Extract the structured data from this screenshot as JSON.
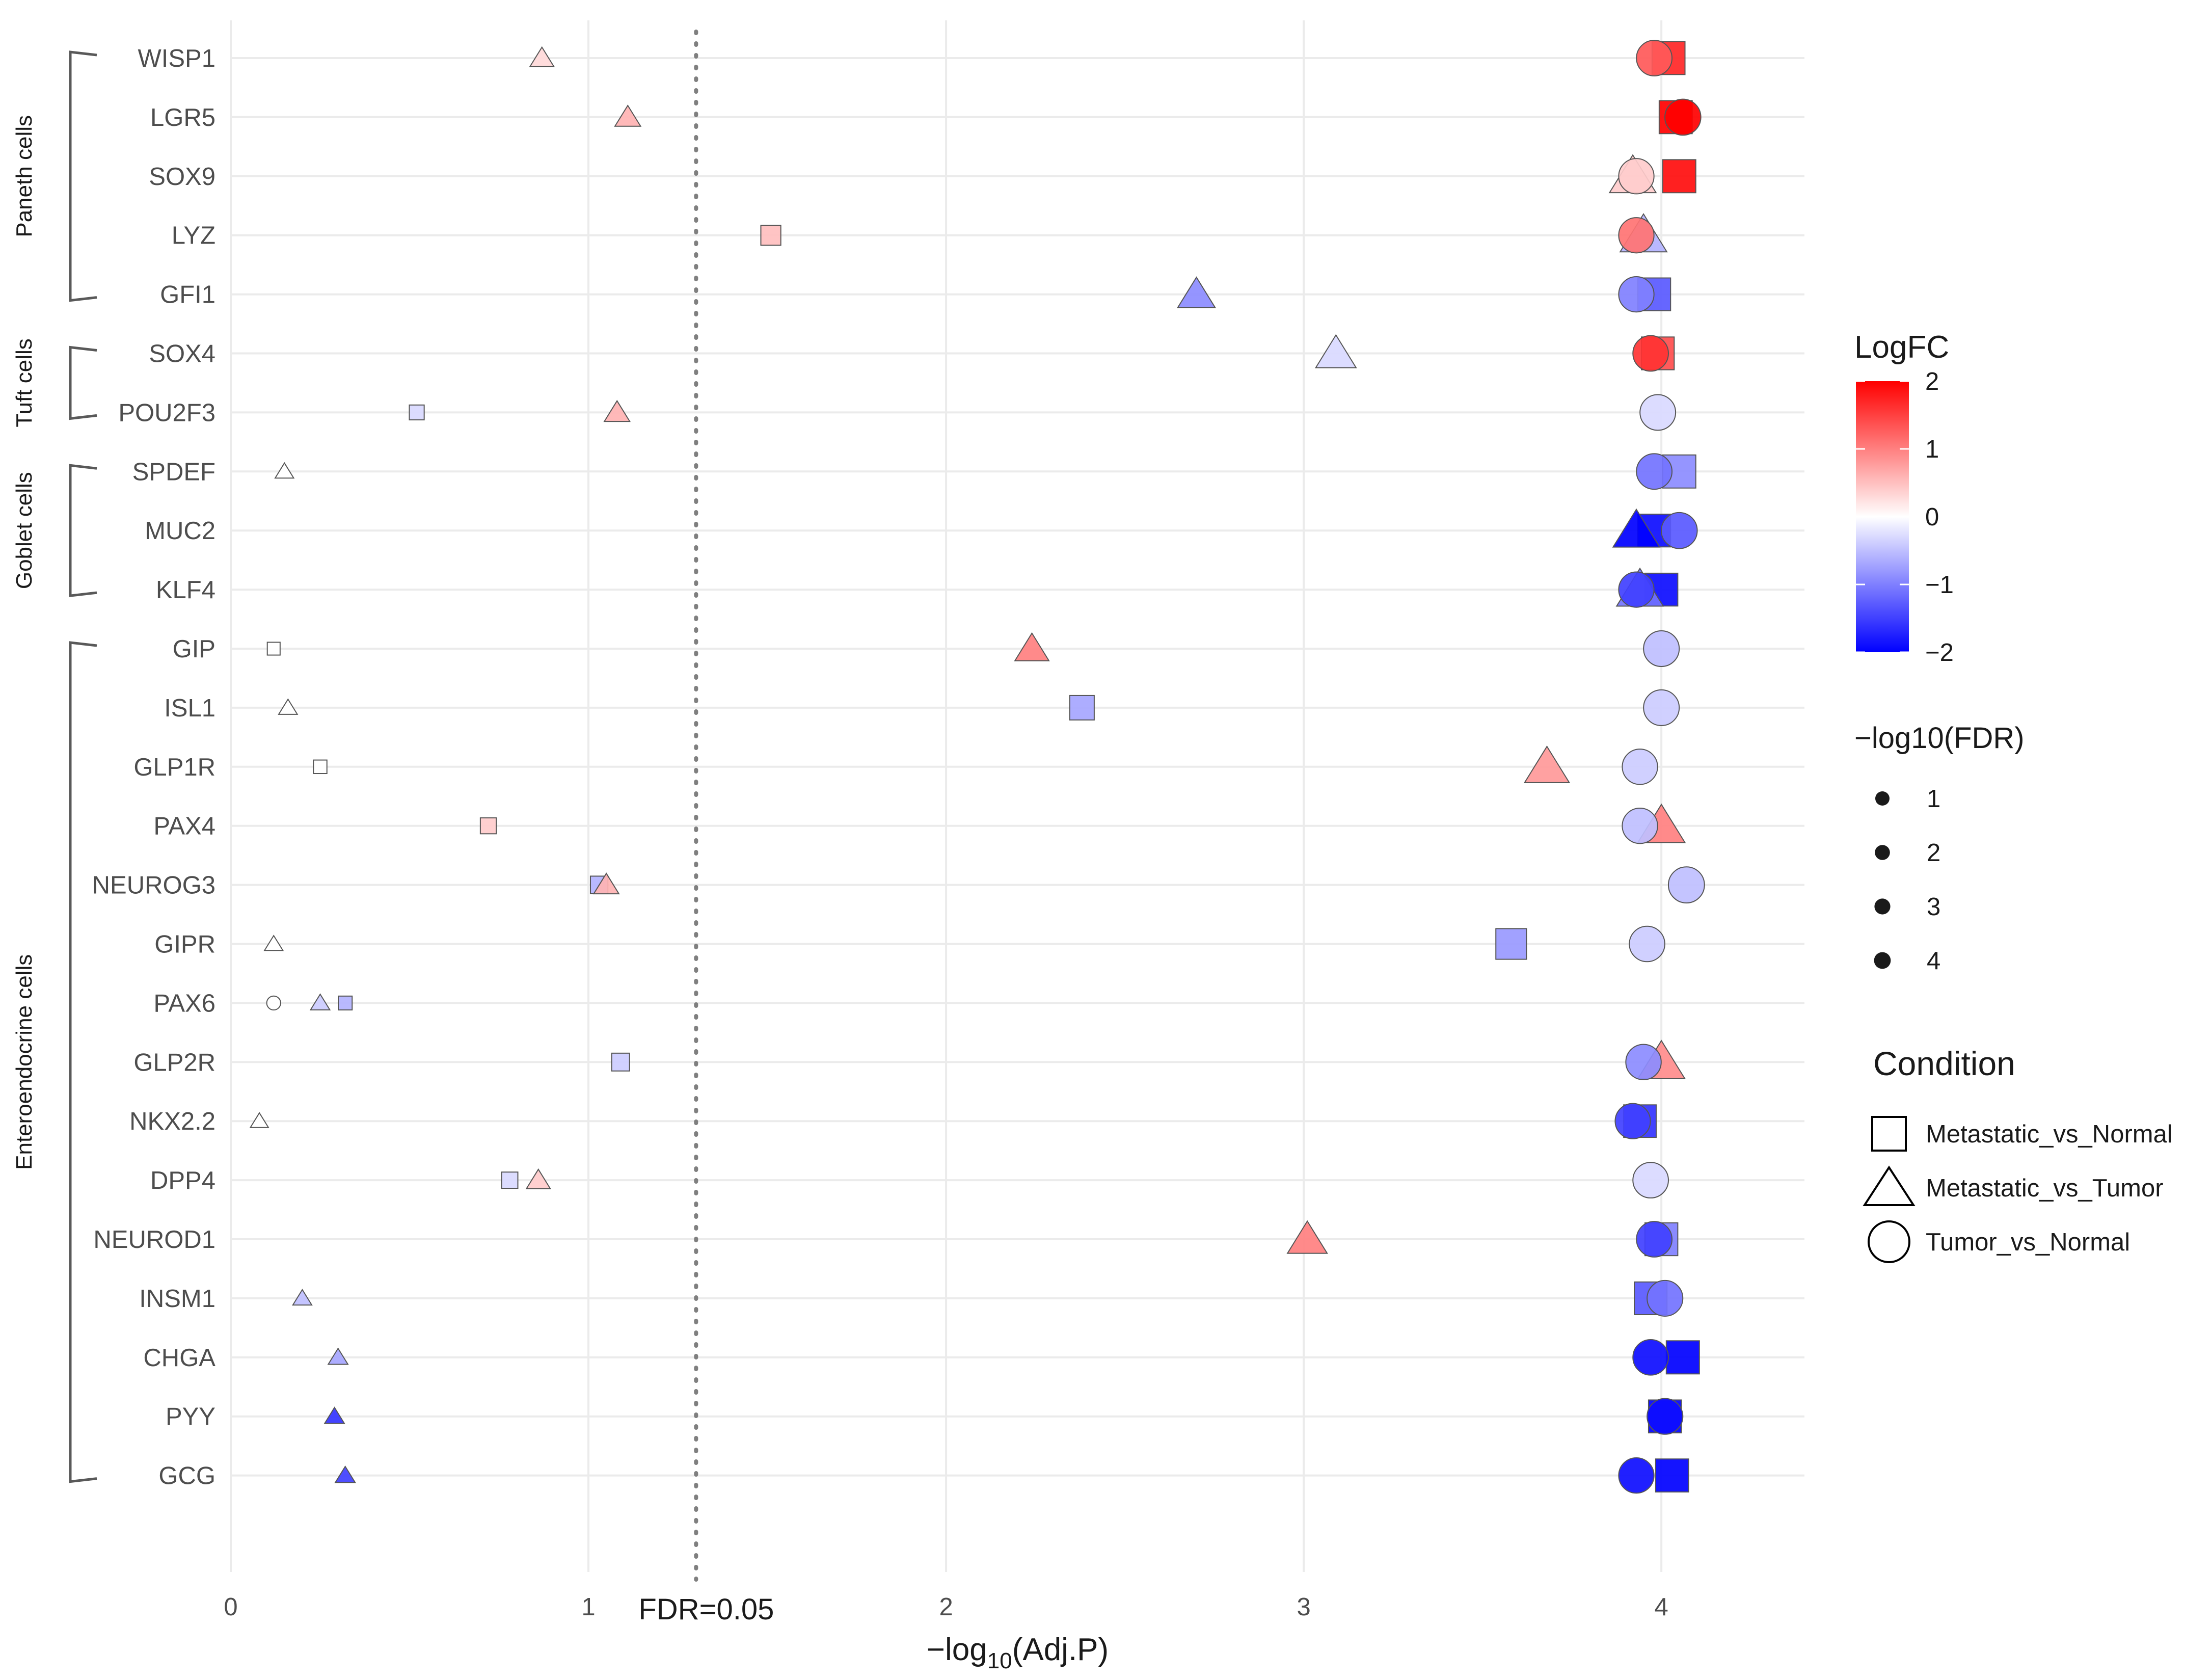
{
  "chart_data": {
    "type": "scatter",
    "title": "",
    "xlabel_parts": {
      "prefix": "−log",
      "sub": "10",
      "suffix": "(Adj.P)"
    },
    "ylabel": "",
    "xlim": [
      0,
      4.4
    ],
    "x_ticks": [
      0,
      1,
      2,
      3,
      4
    ],
    "x_tick_labels": [
      "0",
      "1",
      "2",
      "3",
      "4"
    ],
    "threshold": {
      "x": 1.301,
      "label": "FDR=0.05"
    },
    "genes": [
      "WISP1",
      "LGR5",
      "SOX9",
      "LYZ",
      "GFI1",
      "SOX4",
      "POU2F3",
      "SPDEF",
      "MUC2",
      "KLF4",
      "GIP",
      "ISL1",
      "GLP1R",
      "PAX4",
      "NEUROG3",
      "GIPR",
      "PAX6",
      "GLP2R",
      "NKX2.2",
      "DPP4",
      "NEUROD1",
      "INSM1",
      "CHGA",
      "PYY",
      "GCG"
    ],
    "groups": [
      {
        "label": "Paneth cells",
        "from": "WISP1",
        "to": "GFI1"
      },
      {
        "label": "Tuft cells",
        "from": "SOX4",
        "to": "POU2F3"
      },
      {
        "label": "Goblet cells",
        "from": "SPDEF",
        "to": "KLF4"
      },
      {
        "label": "Enteroendocrine cells",
        "from": "GIP",
        "to": "GCG"
      }
    ],
    "series": [
      {
        "name": "Metastatic_vs_Normal",
        "shape": "square",
        "points": [
          {
            "gene": "WISP1",
            "x": 4.02,
            "logfc": 1.7
          },
          {
            "gene": "LGR5",
            "x": 4.04,
            "logfc": 2.0
          },
          {
            "gene": "SOX9",
            "x": 4.05,
            "logfc": 1.9
          },
          {
            "gene": "LYZ",
            "x": 1.51,
            "logfc": 0.5
          },
          {
            "gene": "GFI1",
            "x": 3.98,
            "logfc": -1.3
          },
          {
            "gene": "SOX4",
            "x": 3.99,
            "logfc": 1.4
          },
          {
            "gene": "POU2F3",
            "x": 0.52,
            "logfc": -0.3
          },
          {
            "gene": "SPDEF",
            "x": 4.05,
            "logfc": -0.9
          },
          {
            "gene": "MUC2",
            "x": 3.98,
            "logfc": -1.9
          },
          {
            "gene": "KLF4",
            "x": 4.0,
            "logfc": -1.9
          },
          {
            "gene": "GIP",
            "x": 0.12,
            "logfc": 0.0
          },
          {
            "gene": "ISL1",
            "x": 2.38,
            "logfc": -0.7
          },
          {
            "gene": "GLP1R",
            "x": 0.25,
            "logfc": 0.0
          },
          {
            "gene": "PAX4",
            "x": 0.72,
            "logfc": 0.4
          },
          {
            "gene": "NEUROG3",
            "x": 1.03,
            "logfc": -0.6
          },
          {
            "gene": "GIPR",
            "x": 3.58,
            "logfc": -0.8
          },
          {
            "gene": "PAX6",
            "x": 0.32,
            "logfc": -0.6
          },
          {
            "gene": "GLP2R",
            "x": 1.09,
            "logfc": -0.4
          },
          {
            "gene": "NKX2.2",
            "x": 3.94,
            "logfc": -1.6
          },
          {
            "gene": "DPP4",
            "x": 0.78,
            "logfc": -0.3
          },
          {
            "gene": "NEUROD1",
            "x": 4.0,
            "logfc": -1.0
          },
          {
            "gene": "INSM1",
            "x": 3.97,
            "logfc": -1.3
          },
          {
            "gene": "CHGA",
            "x": 4.06,
            "logfc": -2.0
          },
          {
            "gene": "PYY",
            "x": 4.01,
            "logfc": -2.0
          },
          {
            "gene": "GCG",
            "x": 4.03,
            "logfc": -2.0
          }
        ]
      },
      {
        "name": "Metastatic_vs_Tumor",
        "shape": "triangle",
        "points": [
          {
            "gene": "WISP1",
            "x": 0.87,
            "logfc": 0.3
          },
          {
            "gene": "LGR5",
            "x": 1.11,
            "logfc": 0.6
          },
          {
            "gene": "SOX9",
            "x": 3.92,
            "logfc": 0.4
          },
          {
            "gene": "LYZ",
            "x": 3.95,
            "logfc": -0.6
          },
          {
            "gene": "GFI1",
            "x": 2.7,
            "logfc": -0.9
          },
          {
            "gene": "SOX4",
            "x": 3.09,
            "logfc": -0.3
          },
          {
            "gene": "POU2F3",
            "x": 1.08,
            "logfc": 0.6
          },
          {
            "gene": "SPDEF",
            "x": 0.15,
            "logfc": 0.0
          },
          {
            "gene": "MUC2",
            "x": 3.93,
            "logfc": -2.0
          },
          {
            "gene": "KLF4",
            "x": 3.94,
            "logfc": -1.1
          },
          {
            "gene": "GIP",
            "x": 2.24,
            "logfc": 1.0
          },
          {
            "gene": "ISL1",
            "x": 0.16,
            "logfc": 0.0
          },
          {
            "gene": "GLP1R",
            "x": 3.68,
            "logfc": 0.8
          },
          {
            "gene": "PAX4",
            "x": 4.0,
            "logfc": 1.0
          },
          {
            "gene": "NEUROG3",
            "x": 1.05,
            "logfc": 0.6
          },
          {
            "gene": "GIPR",
            "x": 0.12,
            "logfc": 0.0
          },
          {
            "gene": "PAX6",
            "x": 0.25,
            "logfc": -0.4
          },
          {
            "gene": "GLP2R",
            "x": 4.0,
            "logfc": 0.9
          },
          {
            "gene": "NKX2.2",
            "x": 0.08,
            "logfc": 0.0
          },
          {
            "gene": "DPP4",
            "x": 0.86,
            "logfc": 0.4
          },
          {
            "gene": "NEUROD1",
            "x": 3.01,
            "logfc": 1.0
          },
          {
            "gene": "INSM1",
            "x": 0.2,
            "logfc": -0.5
          },
          {
            "gene": "CHGA",
            "x": 0.3,
            "logfc": -0.7
          },
          {
            "gene": "PYY",
            "x": 0.29,
            "logfc": -1.6
          },
          {
            "gene": "GCG",
            "x": 0.32,
            "logfc": -1.5
          }
        ]
      },
      {
        "name": "Tumor_vs_Normal",
        "shape": "circle",
        "points": [
          {
            "gene": "WISP1",
            "x": 3.98,
            "logfc": 1.3
          },
          {
            "gene": "LGR5",
            "x": 4.06,
            "logfc": 2.0
          },
          {
            "gene": "SOX9",
            "x": 3.93,
            "logfc": 0.4
          },
          {
            "gene": "LYZ",
            "x": 3.93,
            "logfc": 1.1
          },
          {
            "gene": "GFI1",
            "x": 3.93,
            "logfc": -1.0
          },
          {
            "gene": "SOX4",
            "x": 3.97,
            "logfc": 1.6
          },
          {
            "gene": "POU2F3",
            "x": 3.99,
            "logfc": -0.3
          },
          {
            "gene": "SPDEF",
            "x": 3.98,
            "logfc": -1.1
          },
          {
            "gene": "MUC2",
            "x": 4.05,
            "logfc": -1.3
          },
          {
            "gene": "KLF4",
            "x": 3.93,
            "logfc": -1.5
          },
          {
            "gene": "GIP",
            "x": 4.0,
            "logfc": -0.5
          },
          {
            "gene": "ISL1",
            "x": 4.0,
            "logfc": -0.4
          },
          {
            "gene": "GLP1R",
            "x": 3.94,
            "logfc": -0.4
          },
          {
            "gene": "PAX4",
            "x": 3.94,
            "logfc": -0.5
          },
          {
            "gene": "NEUROG3",
            "x": 4.07,
            "logfc": -0.5
          },
          {
            "gene": "GIPR",
            "x": 3.96,
            "logfc": -0.4
          },
          {
            "gene": "PAX6",
            "x": 0.12,
            "logfc": 0.0
          },
          {
            "gene": "GLP2R",
            "x": 3.95,
            "logfc": -0.9
          },
          {
            "gene": "NKX2.2",
            "x": 3.92,
            "logfc": -1.5
          },
          {
            "gene": "DPP4",
            "x": 3.97,
            "logfc": -0.3
          },
          {
            "gene": "NEUROD1",
            "x": 3.98,
            "logfc": -1.5
          },
          {
            "gene": "INSM1",
            "x": 4.01,
            "logfc": -1.1
          },
          {
            "gene": "CHGA",
            "x": 3.97,
            "logfc": -1.9
          },
          {
            "gene": "PYY",
            "x": 4.01,
            "logfc": -1.9
          },
          {
            "gene": "GCG",
            "x": 3.93,
            "logfc": -1.9
          }
        ]
      }
    ],
    "legend_logfc": {
      "title": "LogFC",
      "range": [
        -2,
        2
      ],
      "ticks": [
        2,
        1,
        0,
        -1,
        -2
      ],
      "tick_labels": [
        "2",
        "1",
        "0",
        "−1",
        "−2"
      ],
      "low_color": "#0000ff",
      "mid_color": "#ffffff",
      "high_color": "#ff0000"
    },
    "legend_size": {
      "title": "−log10(FDR)",
      "entries": [
        "1",
        "2",
        "3",
        "4"
      ]
    },
    "legend_shape": {
      "title": "Condition",
      "entries": [
        {
          "shape": "square",
          "label": "Metastatic_vs_Normal"
        },
        {
          "shape": "triangle",
          "label": "Metastatic_vs_Tumor"
        },
        {
          "shape": "circle",
          "label": "Tumor_vs_Normal"
        }
      ]
    },
    "colors": {
      "grid": "#ebebeb",
      "text": "#4d4d4d",
      "title_text": "#1a1a1a",
      "bracket": "#595959",
      "threshold_line": "#7f7f7f"
    }
  }
}
